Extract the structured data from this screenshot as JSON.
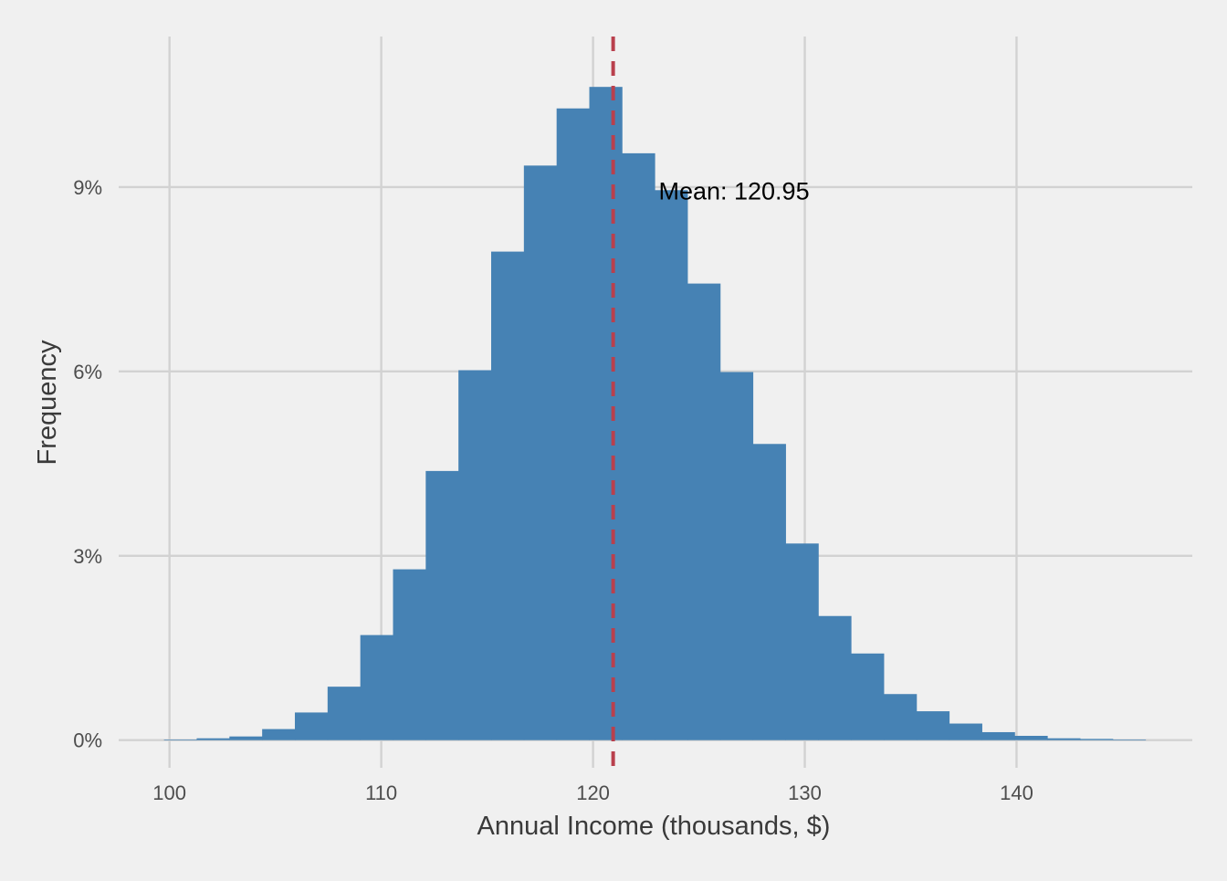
{
  "chart_data": {
    "type": "bar",
    "subtype": "histogram",
    "xlabel": "Annual Income (thousands, $)",
    "ylabel": "Frequency",
    "x_ticks": [
      100,
      110,
      120,
      130,
      140
    ],
    "y_ticks": [
      0,
      3,
      6,
      9
    ],
    "y_tick_labels": [
      "0%",
      "3%",
      "6%",
      "9%"
    ],
    "xlim": [
      97.6,
      148.3
    ],
    "ylim": [
      -0.45,
      11.45
    ],
    "grid": true,
    "bar_color": "#4682b4",
    "bins": {
      "start": 99.74,
      "width": 1.545,
      "percent": [
        0.01,
        0.03,
        0.06,
        0.18,
        0.45,
        0.87,
        1.71,
        2.78,
        4.38,
        6.02,
        7.95,
        9.35,
        10.28,
        10.63,
        9.55,
        8.95,
        7.43,
        5.99,
        4.82,
        3.2,
        2.02,
        1.41,
        0.75,
        0.47,
        0.27,
        0.13,
        0.07,
        0.03,
        0.02,
        0.01
      ]
    },
    "mean_line": {
      "x": 120.95,
      "color": "#b9404d",
      "style": "dashed"
    },
    "annotations": [
      {
        "text": "Mean: 120.95",
        "x": 123.1,
        "y": 8.95
      }
    ]
  }
}
